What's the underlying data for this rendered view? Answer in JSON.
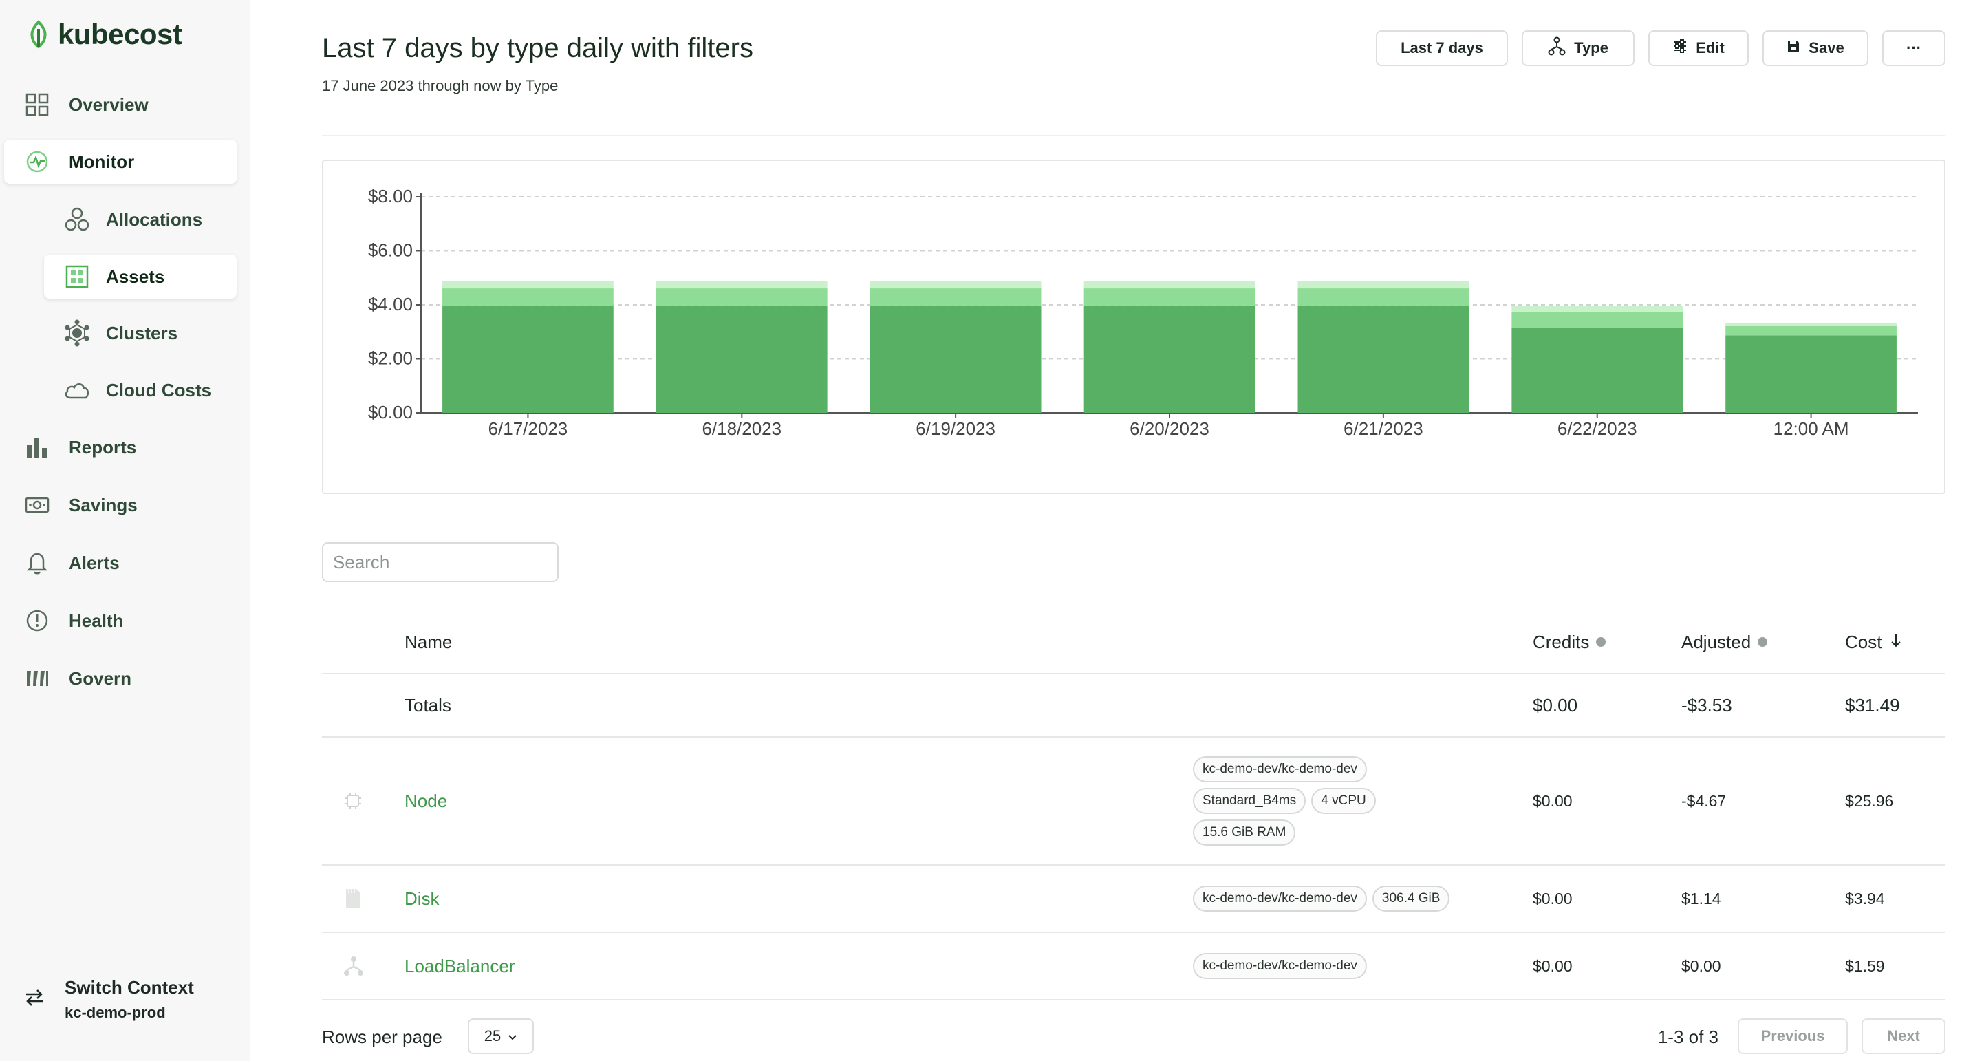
{
  "app": {
    "name": "kubecost"
  },
  "sidebar": {
    "items": [
      {
        "label": "Overview",
        "icon": "grid-icon"
      },
      {
        "label": "Monitor",
        "icon": "monitor-icon"
      },
      {
        "label": "Allocations",
        "icon": "allocations-icon"
      },
      {
        "label": "Assets",
        "icon": "assets-icon"
      },
      {
        "label": "Clusters",
        "icon": "clusters-icon"
      },
      {
        "label": "Cloud Costs",
        "icon": "cloud-icon"
      },
      {
        "label": "Reports",
        "icon": "bar-chart-icon"
      },
      {
        "label": "Savings",
        "icon": "money-icon"
      },
      {
        "label": "Alerts",
        "icon": "bell-icon"
      },
      {
        "label": "Health",
        "icon": "alert-circle-icon"
      },
      {
        "label": "Govern",
        "icon": "govern-icon"
      }
    ],
    "active": "Assets",
    "switch_context": {
      "label": "Switch Context",
      "context": "kc-demo-prod"
    }
  },
  "header": {
    "title": "Last 7 days by type daily with filters",
    "subtitle": "17 June 2023 through now by Type",
    "buttons": {
      "range": "Last 7 days",
      "type": "Type",
      "edit": "Edit",
      "save": "Save",
      "more": "···"
    }
  },
  "search": {
    "placeholder": "Search"
  },
  "table": {
    "columns": {
      "name": "Name",
      "credits": "Credits",
      "adjusted": "Adjusted",
      "cost": "Cost"
    },
    "totals": {
      "label": "Totals",
      "credits": "$0.00",
      "adjusted": "-$3.53",
      "cost": "$31.49"
    },
    "rows": [
      {
        "name": "Node",
        "chips": [
          [
            "kc-demo-dev/kc-demo-dev"
          ],
          [
            "Standard_B4ms",
            "4 vCPU"
          ],
          [
            "15.6 GiB RAM"
          ]
        ],
        "credits": "$0.00",
        "adjusted": "-$4.67",
        "cost": "$25.96"
      },
      {
        "name": "Disk",
        "chips": [
          [
            "kc-demo-dev/kc-demo-dev",
            "306.4 GiB"
          ]
        ],
        "credits": "$0.00",
        "adjusted": "$1.14",
        "cost": "$3.94"
      },
      {
        "name": "LoadBalancer",
        "chips": [
          [
            "kc-demo-dev/kc-demo-dev"
          ]
        ],
        "credits": "$0.00",
        "adjusted": "$0.00",
        "cost": "$1.59"
      }
    ]
  },
  "pagination": {
    "rows_per_page_label": "Rows per page",
    "rows_per_page": "25",
    "range": "1-3 of 3",
    "previous": "Previous",
    "next": "Next"
  },
  "chart_data": {
    "type": "bar",
    "stacked": true,
    "categories": [
      "6/17/2023",
      "6/18/2023",
      "6/19/2023",
      "6/20/2023",
      "6/21/2023",
      "6/22/2023",
      "12:00 AM"
    ],
    "series": [
      {
        "values": [
          3.98,
          3.98,
          3.98,
          3.98,
          3.98,
          3.14,
          2.87
        ],
        "color": "#58b064"
      },
      {
        "values": [
          0.63,
          0.63,
          0.63,
          0.63,
          0.63,
          0.59,
          0.34
        ],
        "color": "#8fdc96"
      },
      {
        "values": [
          0.26,
          0.26,
          0.26,
          0.26,
          0.26,
          0.23,
          0.13
        ],
        "color": "#c8f1cc"
      }
    ],
    "yticks": [
      "$0.00",
      "$2.00",
      "$4.00",
      "$6.00",
      "$8.00"
    ],
    "ylim": [
      0,
      8
    ],
    "grid": true
  }
}
